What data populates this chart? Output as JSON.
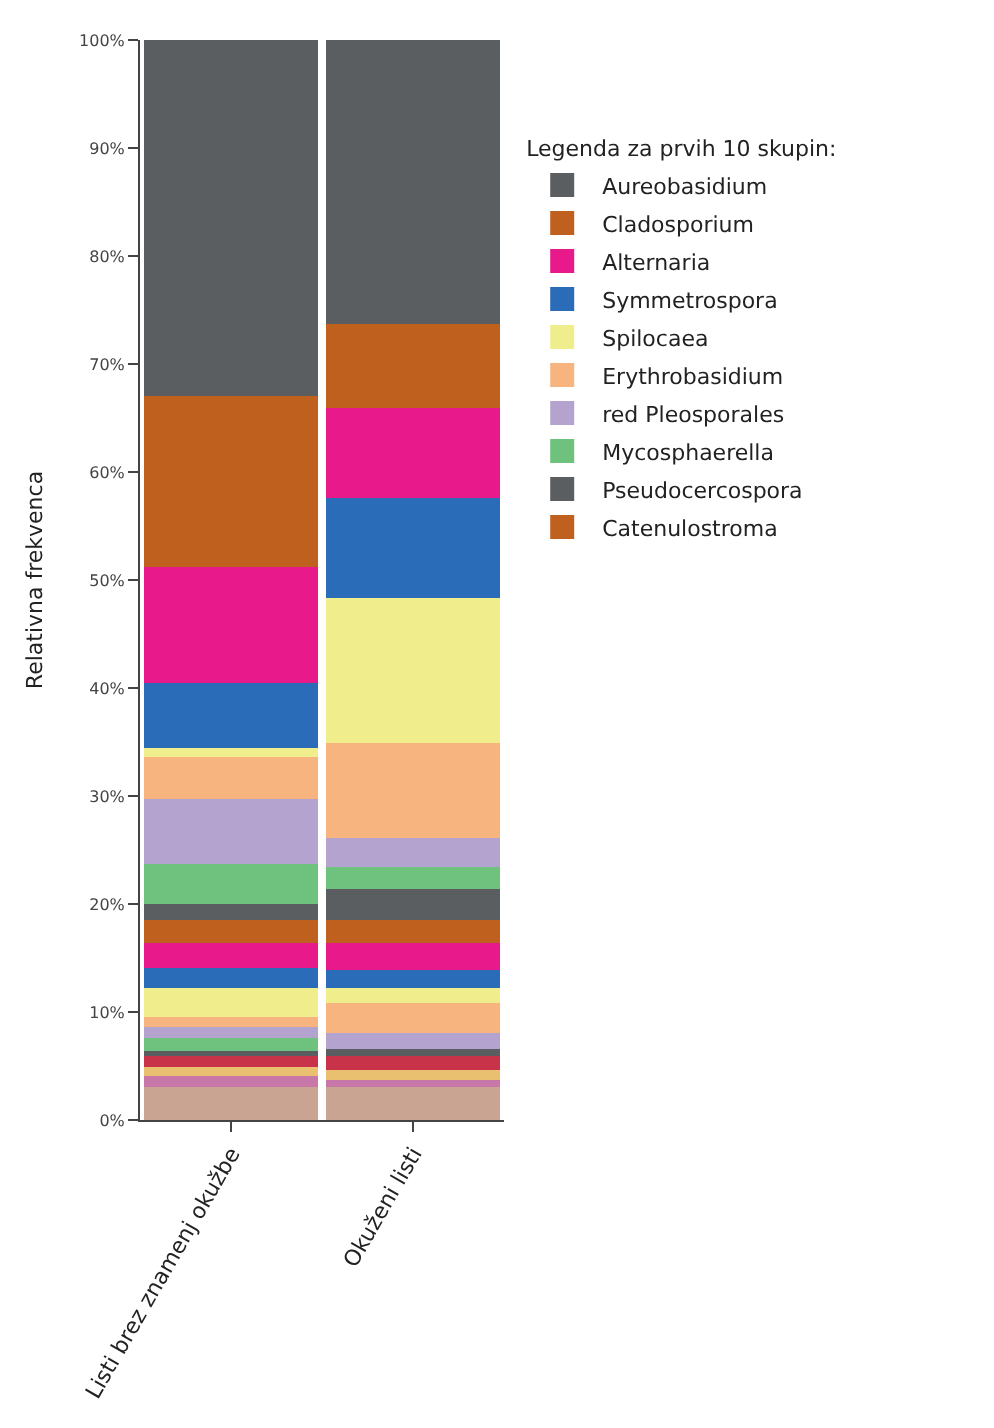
{
  "chart_data": {
    "type": "bar",
    "stacked": true,
    "ylabel": "Relativna frekvenca",
    "legend_title": "Legenda za prvih 10 skupin:",
    "legend": "right",
    "categories": [
      "Listi brez znamenj okužbe",
      "Okuženi listi"
    ],
    "ylim": [
      0,
      100
    ],
    "yticks": [
      {
        "value": 0,
        "label": "0%"
      },
      {
        "value": 10,
        "label": "10%"
      },
      {
        "value": 20,
        "label": "20%"
      },
      {
        "value": 30,
        "label": "30%"
      },
      {
        "value": 40,
        "label": "40%"
      },
      {
        "value": 50,
        "label": "50%"
      },
      {
        "value": 60,
        "label": "60%"
      },
      {
        "value": 70,
        "label": "70%"
      },
      {
        "value": 80,
        "label": "80%"
      },
      {
        "value": 90,
        "label": "90%"
      },
      {
        "value": 100,
        "label": "100%"
      }
    ],
    "series": [
      {
        "color": "#c9a493",
        "values": [
          3.1,
          3.1
        ]
      },
      {
        "color": "#c878a8",
        "values": [
          1.0,
          0.6
        ]
      },
      {
        "color": "#e8c070",
        "values": [
          0.8,
          0.9
        ]
      },
      {
        "color": "#c8334a",
        "values": [
          1.0,
          1.3
        ]
      },
      {
        "color": "#5a5e61",
        "values": [
          0.5,
          0.7
        ]
      },
      {
        "color": "#6fc17e",
        "values": [
          1.2,
          0
        ]
      },
      {
        "color": "#b4a3cf",
        "values": [
          1.0,
          1.5
        ]
      },
      {
        "color": "#f7b47f",
        "values": [
          0.9,
          2.7
        ]
      },
      {
        "color": "#f0ee8c",
        "values": [
          2.7,
          1.4
        ]
      },
      {
        "color": "#2b6cb8",
        "values": [
          1.9,
          1.7
        ]
      },
      {
        "color": "#e8198b",
        "values": [
          2.3,
          2.5
        ]
      },
      {
        "name": "Catenulostroma",
        "color": "#c0601e",
        "values": [
          2.1,
          2.1
        ]
      },
      {
        "name": "Pseudocercospora",
        "color": "#5a5e61",
        "values": [
          1.5,
          2.9
        ]
      },
      {
        "name": "Mycosphaerella",
        "color": "#6fc17e",
        "values": [
          3.7,
          2.0
        ]
      },
      {
        "name": "red Pleosporales",
        "color": "#b4a3cf",
        "values": [
          6.0,
          2.7
        ]
      },
      {
        "name": "Erythrobasidium",
        "color": "#f7b47f",
        "values": [
          3.9,
          8.8
        ]
      },
      {
        "name": "Spilocaea",
        "color": "#f0ee8c",
        "values": [
          0.8,
          13.4
        ]
      },
      {
        "name": "Symmetrospora",
        "color": "#2b6cb8",
        "values": [
          6.1,
          9.3
        ]
      },
      {
        "name": "Alternaria",
        "color": "#e8198b",
        "values": [
          10.7,
          8.3
        ]
      },
      {
        "name": "Cladosporium",
        "color": "#c0601e",
        "values": [
          15.8,
          7.8
        ]
      },
      {
        "name": "Aureobasidium",
        "color": "#5a5e61",
        "values": [
          33.0,
          26.3
        ]
      }
    ]
  }
}
